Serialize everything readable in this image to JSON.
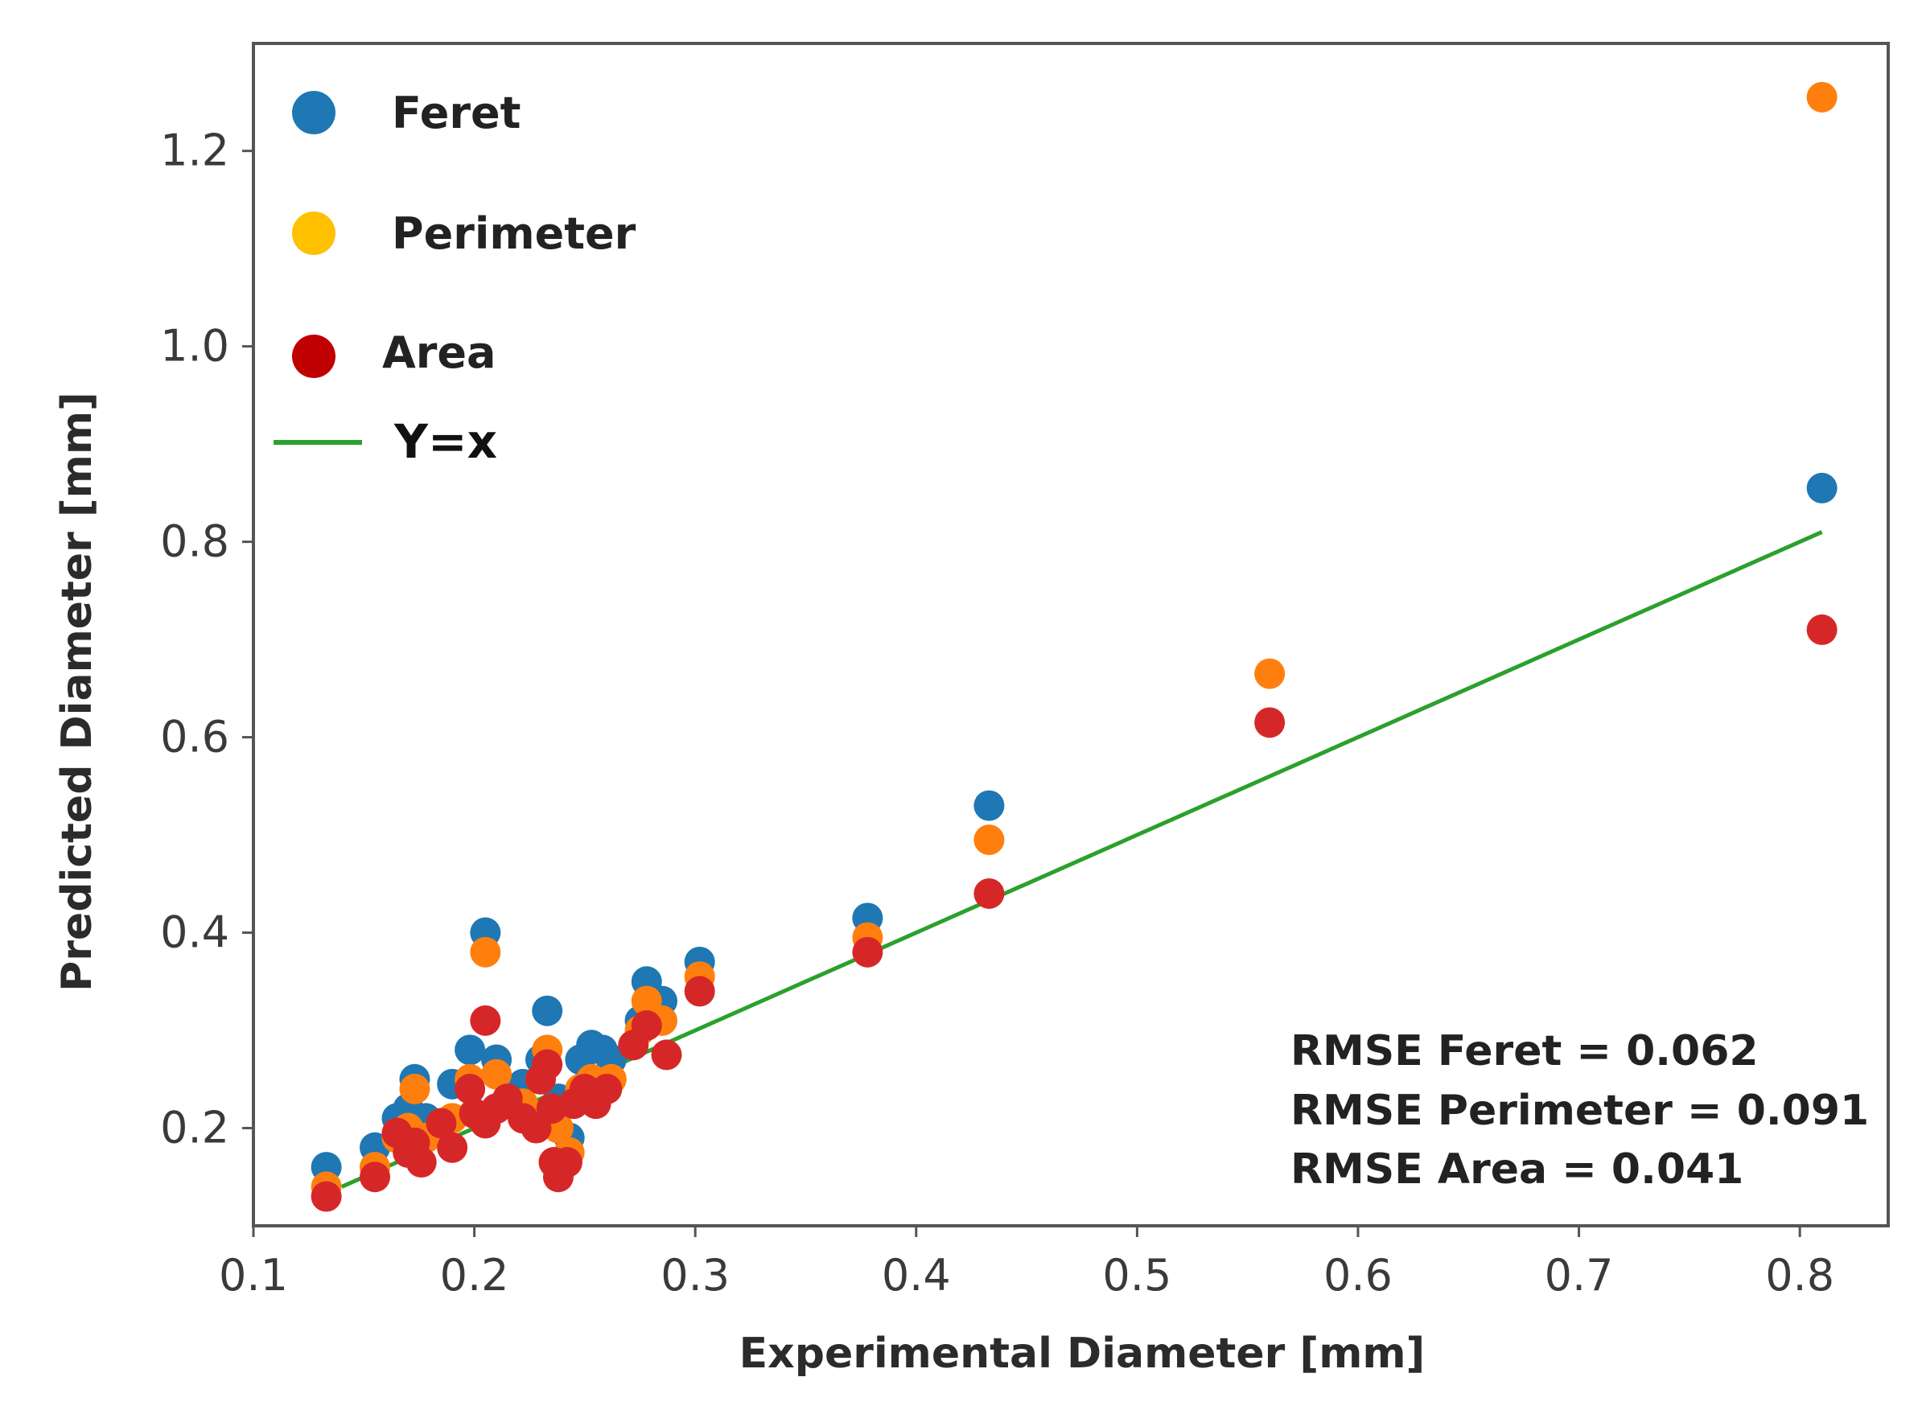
{
  "chart_data": {
    "type": "scatter",
    "title": "",
    "xlabel": "Experimental Diameter [mm]",
    "ylabel": "Predicted Diameter [mm]",
    "xlim": [
      0.1,
      0.84
    ],
    "ylim": [
      0.1,
      1.31
    ],
    "x_ticks": [
      0.1,
      0.2,
      0.3,
      0.4,
      0.5,
      0.6,
      0.7,
      0.8
    ],
    "x_tick_labels": [
      "0.1",
      "0.2",
      "0.3",
      "0.4",
      "0.5",
      "0.6",
      "0.7",
      "0.8"
    ],
    "y_ticks": [
      0.2,
      0.4,
      0.6,
      0.8,
      1.0,
      1.2
    ],
    "y_tick_labels": [
      "0.2",
      "0.4",
      "0.6",
      "0.8",
      "1.0",
      "1.2"
    ],
    "grid": false,
    "legend_position": "top-left",
    "reference_line": {
      "name": "Y=x",
      "color": "#2ca02c",
      "x": [
        0.14,
        0.81
      ]
    },
    "series": [
      {
        "name": "Feret",
        "color": "#1f77b4",
        "points": [
          [
            0.133,
            0.16
          ],
          [
            0.155,
            0.18
          ],
          [
            0.165,
            0.21
          ],
          [
            0.17,
            0.22
          ],
          [
            0.173,
            0.25
          ],
          [
            0.178,
            0.21
          ],
          [
            0.19,
            0.245
          ],
          [
            0.198,
            0.28
          ],
          [
            0.205,
            0.4
          ],
          [
            0.21,
            0.27
          ],
          [
            0.222,
            0.245
          ],
          [
            0.23,
            0.27
          ],
          [
            0.233,
            0.32
          ],
          [
            0.238,
            0.23
          ],
          [
            0.243,
            0.19
          ],
          [
            0.248,
            0.27
          ],
          [
            0.253,
            0.285
          ],
          [
            0.258,
            0.28
          ],
          [
            0.262,
            0.27
          ],
          [
            0.275,
            0.31
          ],
          [
            0.278,
            0.35
          ],
          [
            0.285,
            0.33
          ],
          [
            0.302,
            0.37
          ],
          [
            0.378,
            0.415
          ],
          [
            0.433,
            0.53
          ],
          [
            0.81,
            0.855
          ]
        ]
      },
      {
        "name": "Perimeter",
        "color": "#ff7f0e",
        "legend_color": "#ffc000",
        "points": [
          [
            0.133,
            0.14
          ],
          [
            0.155,
            0.16
          ],
          [
            0.165,
            0.19
          ],
          [
            0.17,
            0.2
          ],
          [
            0.173,
            0.24
          ],
          [
            0.178,
            0.19
          ],
          [
            0.19,
            0.21
          ],
          [
            0.198,
            0.25
          ],
          [
            0.205,
            0.38
          ],
          [
            0.21,
            0.255
          ],
          [
            0.222,
            0.225
          ],
          [
            0.23,
            0.25
          ],
          [
            0.233,
            0.28
          ],
          [
            0.238,
            0.2
          ],
          [
            0.243,
            0.175
          ],
          [
            0.248,
            0.24
          ],
          [
            0.253,
            0.25
          ],
          [
            0.262,
            0.25
          ],
          [
            0.275,
            0.3
          ],
          [
            0.278,
            0.33
          ],
          [
            0.285,
            0.31
          ],
          [
            0.302,
            0.355
          ],
          [
            0.378,
            0.395
          ],
          [
            0.433,
            0.495
          ],
          [
            0.56,
            0.665
          ],
          [
            0.81,
            1.255
          ]
        ]
      },
      {
        "name": "Area",
        "color": "#d62728",
        "legend_color": "#c00000",
        "points": [
          [
            0.133,
            0.13
          ],
          [
            0.155,
            0.15
          ],
          [
            0.165,
            0.195
          ],
          [
            0.17,
            0.175
          ],
          [
            0.173,
            0.185
          ],
          [
            0.176,
            0.165
          ],
          [
            0.185,
            0.205
          ],
          [
            0.19,
            0.18
          ],
          [
            0.198,
            0.24
          ],
          [
            0.2,
            0.215
          ],
          [
            0.205,
            0.31
          ],
          [
            0.205,
            0.205
          ],
          [
            0.21,
            0.22
          ],
          [
            0.215,
            0.23
          ],
          [
            0.222,
            0.21
          ],
          [
            0.228,
            0.2
          ],
          [
            0.23,
            0.25
          ],
          [
            0.233,
            0.265
          ],
          [
            0.235,
            0.22
          ],
          [
            0.236,
            0.165
          ],
          [
            0.238,
            0.15
          ],
          [
            0.242,
            0.165
          ],
          [
            0.245,
            0.225
          ],
          [
            0.25,
            0.24
          ],
          [
            0.255,
            0.225
          ],
          [
            0.26,
            0.24
          ],
          [
            0.272,
            0.285
          ],
          [
            0.278,
            0.305
          ],
          [
            0.287,
            0.275
          ],
          [
            0.302,
            0.34
          ],
          [
            0.378,
            0.38
          ],
          [
            0.433,
            0.44
          ],
          [
            0.56,
            0.615
          ],
          [
            0.81,
            0.71
          ]
        ]
      }
    ],
    "annotations": [
      "RMSE Feret = 0.062",
      "RMSE Perimeter = 0.091",
      "RMSE Area = 0.041"
    ]
  }
}
